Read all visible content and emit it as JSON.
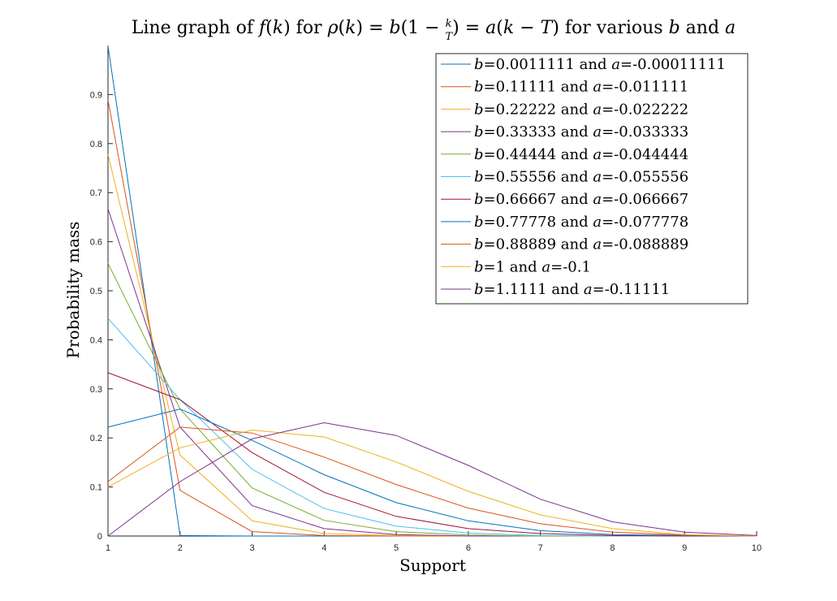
{
  "chart_data": {
    "type": "line",
    "title": {
      "t1": "Line graph of ",
      "t2": "f",
      "t3": "(",
      "t4": "k",
      "t5": ") for ",
      "t6": "ρ",
      "t7": "(",
      "t8": "k",
      "t9": ") = ",
      "t10": "b",
      "t11": "(1 − ",
      "t12": "k",
      "t13": "T",
      "t14": ") = ",
      "t15": "a",
      "t16": "(",
      "t17": "k",
      "t18": " − ",
      "t19": "T",
      "t20": ") for various ",
      "t21": "b",
      "t22": " and ",
      "t23": "a"
    },
    "xlabel": "Support",
    "ylabel": "Probability mass",
    "xlim": [
      1,
      10
    ],
    "ylim": [
      0,
      1
    ],
    "xticks": [
      1,
      2,
      3,
      4,
      5,
      6,
      7,
      8,
      9,
      10
    ],
    "yticks": [
      0,
      0.1,
      0.2,
      0.3,
      0.4,
      0.5,
      0.6,
      0.7,
      0.8,
      0.9
    ],
    "ytick_labels": [
      "0",
      "0.1",
      "0.2",
      "0.3",
      "0.4",
      "0.5",
      "0.6",
      "0.7",
      "0.8",
      "0.9"
    ],
    "grid": false,
    "legend_position": "top-right",
    "legend_b_symbol": "b",
    "legend_a_symbol": "a",
    "legend_and": " and ",
    "x": [
      1,
      2,
      3,
      4,
      5,
      6,
      7,
      8,
      9,
      10
    ],
    "series": [
      {
        "b": "=0.0011111",
        "a": "=-0.00011111",
        "color": "#0072BD",
        "values": [
          0.999,
          0.001,
          0.0,
          0.0,
          0.0,
          0.0,
          0.0,
          0.0,
          0.0,
          0.0
        ]
      },
      {
        "b": "=0.11111",
        "a": "=-0.011111",
        "color": "#D95319",
        "values": [
          0.889,
          0.093,
          0.009,
          0.001,
          0.0,
          0.0,
          0.0,
          0.0,
          0.0,
          0.0
        ]
      },
      {
        "b": "=0.22222",
        "a": "=-0.022222",
        "color": "#EDB120",
        "values": [
          0.778,
          0.165,
          0.031,
          0.005,
          0.001,
          0.0,
          0.0,
          0.0,
          0.0,
          0.0
        ]
      },
      {
        "b": "=0.33333",
        "a": "=-0.033333",
        "color": "#7E2F8E",
        "values": [
          0.667,
          0.222,
          0.062,
          0.015,
          0.003,
          0.0,
          0.0,
          0.0,
          0.0,
          0.0
        ]
      },
      {
        "b": "=0.44444",
        "a": "=-0.044444",
        "color": "#77AC30",
        "values": [
          0.556,
          0.259,
          0.098,
          0.032,
          0.009,
          0.002,
          0.0,
          0.0,
          0.0,
          0.0
        ]
      },
      {
        "b": "=0.55556",
        "a": "=-0.055556",
        "color": "#4DBEEE",
        "values": [
          0.444,
          0.278,
          0.136,
          0.056,
          0.02,
          0.006,
          0.001,
          0.0,
          0.0,
          0.0
        ]
      },
      {
        "b": "=0.66667",
        "a": "=-0.066667",
        "color": "#A2142F",
        "values": [
          0.333,
          0.278,
          0.17,
          0.089,
          0.04,
          0.015,
          0.005,
          0.001,
          0.0,
          0.0
        ]
      },
      {
        "b": "=0.77778",
        "a": "=-0.077778",
        "color": "#0072BD",
        "values": [
          0.222,
          0.259,
          0.195,
          0.125,
          0.068,
          0.031,
          0.011,
          0.003,
          0.001,
          0.0
        ]
      },
      {
        "b": "=0.88889",
        "a": "=-0.088889",
        "color": "#D95319",
        "values": [
          0.111,
          0.222,
          0.21,
          0.161,
          0.105,
          0.057,
          0.025,
          0.008,
          0.002,
          0.0
        ]
      },
      {
        "b": "=1",
        "a": "=-0.1",
        "color": "#EDB120",
        "values": [
          0.1,
          0.18,
          0.216,
          0.202,
          0.151,
          0.091,
          0.043,
          0.015,
          0.003,
          0.0
        ]
      },
      {
        "b": "=1.1111",
        "a": "=-0.11111",
        "color": "#7E2F8E",
        "values": [
          0.0,
          0.111,
          0.198,
          0.231,
          0.205,
          0.144,
          0.075,
          0.029,
          0.008,
          0.001
        ]
      }
    ]
  }
}
